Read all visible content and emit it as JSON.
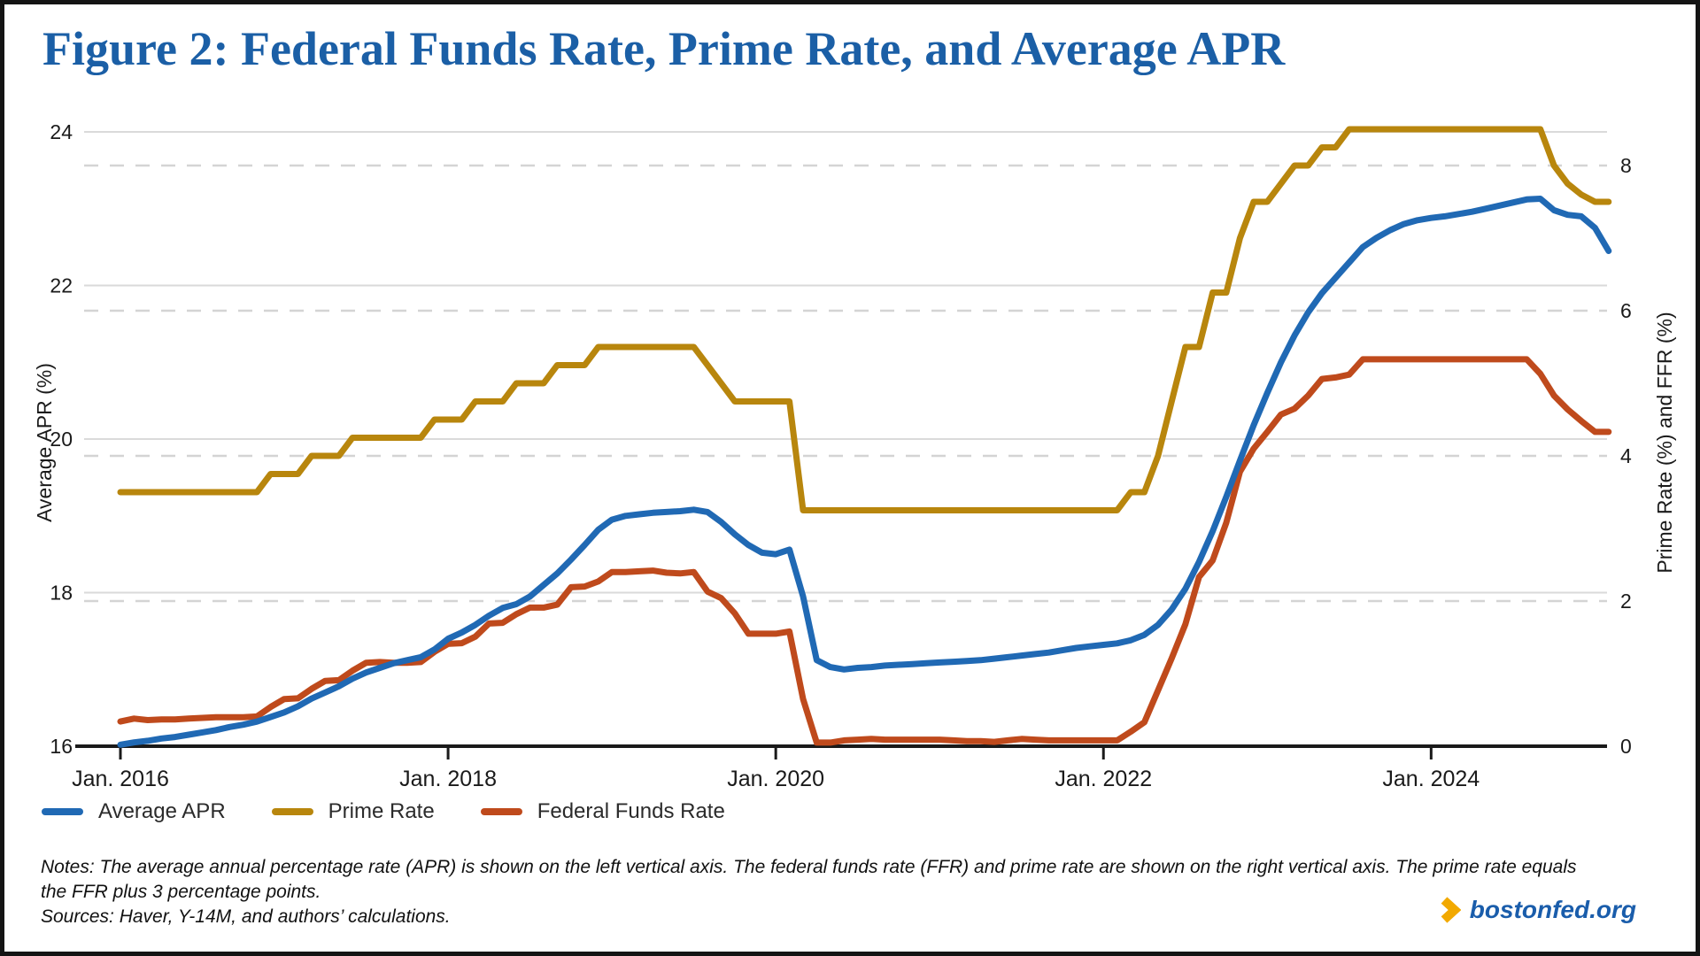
{
  "title": "Figure 2: Federal Funds Rate, Prime Rate, and Average APR",
  "chart_data": {
    "type": "line",
    "x_unit": "monthly, Jan. 2016 through early 2025",
    "x_tick_labels": [
      "Jan. 2016",
      "Jan. 2018",
      "Jan. 2020",
      "Jan. 2022",
      "Jan. 2024"
    ],
    "x_tick_month_indices": [
      0,
      24,
      48,
      72,
      96
    ],
    "left_axis": {
      "label": "Average APR (%)",
      "ticks": [
        24,
        22,
        20,
        18,
        16
      ],
      "range": [
        16,
        24
      ]
    },
    "right_axis": {
      "label": "Prime Rate (%) and FFR (%)",
      "ticks": [
        8,
        6,
        4,
        2,
        0
      ],
      "range": [
        0,
        8.46
      ]
    },
    "gridlines": {
      "solid_left_ticks": [
        24,
        22,
        20,
        18
      ],
      "dashed_right_ticks": [
        8,
        6,
        4,
        2
      ],
      "legend_position": "bottom-left"
    },
    "series": [
      {
        "name": "Average APR",
        "axis": "left",
        "color": "#2069b4",
        "values": [
          16.02,
          16.05,
          16.07,
          16.1,
          16.12,
          16.15,
          16.18,
          16.21,
          16.25,
          16.28,
          16.32,
          16.38,
          16.44,
          16.52,
          16.62,
          16.7,
          16.78,
          16.88,
          16.96,
          17.02,
          17.08,
          17.12,
          17.16,
          17.26,
          17.4,
          17.48,
          17.58,
          17.7,
          17.8,
          17.85,
          17.95,
          18.1,
          18.25,
          18.43,
          18.62,
          18.82,
          18.95,
          19.0,
          19.02,
          19.04,
          19.05,
          19.06,
          19.08,
          19.05,
          18.92,
          18.76,
          18.62,
          18.52,
          18.5,
          18.56,
          17.95,
          17.12,
          17.03,
          17.0,
          17.02,
          17.03,
          17.05,
          17.06,
          17.07,
          17.08,
          17.09,
          17.1,
          17.11,
          17.12,
          17.14,
          17.16,
          17.18,
          17.2,
          17.22,
          17.25,
          17.28,
          17.3,
          17.32,
          17.34,
          17.38,
          17.45,
          17.58,
          17.78,
          18.05,
          18.4,
          18.8,
          19.25,
          19.72,
          20.18,
          20.6,
          21.0,
          21.35,
          21.65,
          21.9,
          22.1,
          22.3,
          22.5,
          22.62,
          22.72,
          22.8,
          22.85,
          22.88,
          22.9,
          22.93,
          22.96,
          23.0,
          23.04,
          23.08,
          23.12,
          23.13,
          22.98,
          22.92,
          22.9,
          22.75,
          22.45
        ]
      },
      {
        "name": "Prime Rate",
        "axis": "right",
        "color": "#b8860d",
        "values": [
          3.5,
          3.5,
          3.5,
          3.5,
          3.5,
          3.5,
          3.5,
          3.5,
          3.5,
          3.5,
          3.5,
          3.75,
          3.75,
          3.75,
          4.0,
          4.0,
          4.0,
          4.25,
          4.25,
          4.25,
          4.25,
          4.25,
          4.25,
          4.5,
          4.5,
          4.5,
          4.75,
          4.75,
          4.75,
          5.0,
          5.0,
          5.0,
          5.25,
          5.25,
          5.25,
          5.5,
          5.5,
          5.5,
          5.5,
          5.5,
          5.5,
          5.5,
          5.5,
          5.25,
          5.0,
          4.75,
          4.75,
          4.75,
          4.75,
          4.75,
          3.25,
          3.25,
          3.25,
          3.25,
          3.25,
          3.25,
          3.25,
          3.25,
          3.25,
          3.25,
          3.25,
          3.25,
          3.25,
          3.25,
          3.25,
          3.25,
          3.25,
          3.25,
          3.25,
          3.25,
          3.25,
          3.25,
          3.25,
          3.25,
          3.5,
          3.5,
          4.0,
          4.75,
          5.5,
          5.5,
          6.25,
          6.25,
          7.0,
          7.5,
          7.5,
          7.75,
          8.0,
          8.0,
          8.25,
          8.25,
          8.5,
          8.5,
          8.5,
          8.5,
          8.5,
          8.5,
          8.5,
          8.5,
          8.5,
          8.5,
          8.5,
          8.5,
          8.5,
          8.5,
          8.5,
          8.0,
          7.75,
          7.6,
          7.5,
          7.5
        ]
      },
      {
        "name": "Federal Funds Rate",
        "axis": "right",
        "color": "#bf4a1c",
        "values": [
          0.34,
          0.38,
          0.36,
          0.37,
          0.37,
          0.38,
          0.39,
          0.4,
          0.4,
          0.4,
          0.41,
          0.54,
          0.65,
          0.66,
          0.79,
          0.9,
          0.91,
          1.04,
          1.15,
          1.16,
          1.15,
          1.15,
          1.16,
          1.3,
          1.41,
          1.42,
          1.51,
          1.69,
          1.7,
          1.82,
          1.91,
          1.91,
          1.95,
          2.19,
          2.2,
          2.27,
          2.4,
          2.4,
          2.41,
          2.42,
          2.39,
          2.38,
          2.4,
          2.13,
          2.04,
          1.83,
          1.55,
          1.55,
          1.55,
          1.58,
          0.65,
          0.05,
          0.05,
          0.08,
          0.09,
          0.1,
          0.09,
          0.09,
          0.09,
          0.09,
          0.09,
          0.08,
          0.07,
          0.07,
          0.06,
          0.08,
          0.1,
          0.09,
          0.08,
          0.08,
          0.08,
          0.08,
          0.08,
          0.08,
          0.2,
          0.33,
          0.77,
          1.21,
          1.68,
          2.33,
          2.56,
          3.08,
          3.78,
          4.1,
          4.33,
          4.57,
          4.65,
          4.83,
          5.06,
          5.08,
          5.12,
          5.33,
          5.33,
          5.33,
          5.33,
          5.33,
          5.33,
          5.33,
          5.33,
          5.33,
          5.33,
          5.33,
          5.33,
          5.33,
          5.13,
          4.83,
          4.64,
          4.48,
          4.33,
          4.33
        ]
      }
    ]
  },
  "notes_line1": "Notes: The average annual percentage rate (APR) is shown on the left vertical axis. The federal funds rate (FFR) and prime rate are shown on the right vertical axis. The prime rate equals",
  "notes_line2": "the FFR plus 3 percentage points.",
  "sources": "Sources: Haver, Y-14M, and authors’ calculations.",
  "footer": {
    "site": "bostonfed.org",
    "chevron_color": "#f2a900",
    "link_color": "#1a5dab"
  }
}
